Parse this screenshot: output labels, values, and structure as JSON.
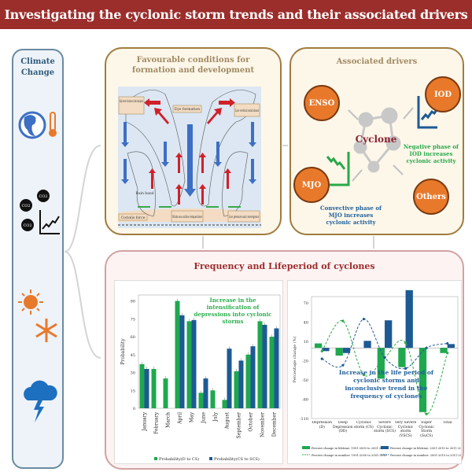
{
  "title": "Investigating the cyclonic storm trends and their associated drivers",
  "climate": {
    "title": "Climate Change",
    "co2_label": "CO2"
  },
  "favourable": {
    "title": "Favourable conditions for formation and development",
    "labels": {
      "moisture": "High levels of moisture in the atmosphere",
      "eye": "Eye formation",
      "shear": "Low vertical wind shear",
      "rainband": "Rain band",
      "coriolis": "Coriolis force",
      "sst": "Warm sea surface temperature",
      "lowpressure": "Low pressure and convergence"
    }
  },
  "drivers": {
    "title": "Associated drivers",
    "center": "Cyclone",
    "nodes": [
      "ENSO",
      "IOD",
      "MJO",
      "Others"
    ],
    "iod_note": "Negative phase of IOD increases cyclonic activity",
    "mjo_note": "Convective phase of MJO increases cyclonic activity",
    "colors": {
      "node": "#e8792b",
      "green": "#2aa84a",
      "blue": "#1f5f9a"
    }
  },
  "frequency": {
    "title": "Frequency and Lifeperiod of cyclones"
  },
  "chart_data": [
    {
      "type": "bar",
      "title": "Increase in the intensification of depressions into cyclonic storms",
      "ylabel": "Probability",
      "ylim": [
        0,
        95
      ],
      "yticks": [
        0,
        15,
        30,
        45,
        60,
        75,
        90
      ],
      "categories": [
        "January",
        "February",
        "March",
        "April",
        "May",
        "June",
        "July",
        "August",
        "September",
        "October",
        "November",
        "December"
      ],
      "series": [
        {
          "name": "Probability(D to CS)",
          "color": "#1fa84f",
          "values": [
            37,
            33,
            25,
            90,
            73,
            13,
            15,
            7,
            31,
            45,
            73,
            60
          ]
        },
        {
          "name": "Probability(CS to SCS)",
          "color": "#1d5a94",
          "values": [
            33,
            0,
            0,
            78,
            74,
            25,
            0,
            50,
            40,
            52,
            70,
            67
          ]
        }
      ],
      "legend": "bottom"
    },
    {
      "type": "bar+line",
      "title": "Increase in the life period of cyclonic storms and inconclusive trend in the frequency of cyclones",
      "ylabel": "Percentage change (%)",
      "ylim": [
        -110,
        80
      ],
      "yticks": [
        70,
        40,
        10,
        -20,
        -50,
        -80,
        -110
      ],
      "categories": [
        "Depression (D)",
        "Deep Depression (DD)",
        "Cyclonic storm (CS)",
        "Severe Cyclonic storm (SCS)",
        "Very Severe Cyclonic storm (VSCS)",
        "Super Cyclonic Storm (SuCS)",
        "Total"
      ],
      "series": [
        {
          "name": "Percent change in lifetime: 1991-2000 to 2001-2010",
          "kind": "bar",
          "color": "#1fa84f",
          "values": [
            7,
            -12,
            0,
            -48,
            -30,
            -100,
            -8
          ]
        },
        {
          "name": "Percent change in lifetime: 2001-2010 to 2011-2020",
          "kind": "bar",
          "color": "#1d5a94",
          "values": [
            -5,
            -8,
            11,
            43,
            90,
            0,
            6
          ]
        },
        {
          "name": "Percent change in number: 1991-2000 to 2001-2010",
          "kind": "line",
          "color": "#2aa84a",
          "values": [
            -5,
            42,
            -42,
            -15,
            8,
            -103,
            -8
          ]
        },
        {
          "name": "Percent change in number: 2001-2010 to 2011-2020",
          "kind": "line",
          "color": "#1d5a94",
          "values": [
            -17,
            -27,
            45,
            -15,
            -32,
            0,
            7
          ]
        }
      ],
      "legend": "bottom"
    }
  ]
}
